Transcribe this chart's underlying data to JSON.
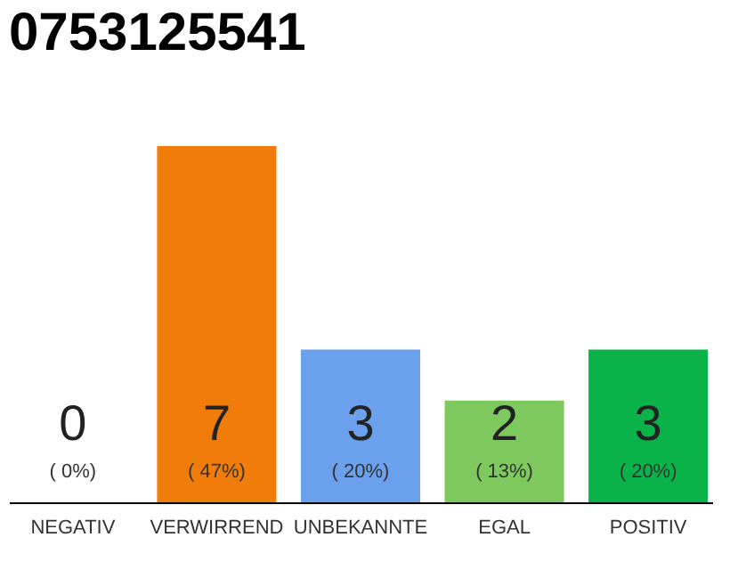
{
  "chart_data": {
    "type": "bar",
    "title": "0753125541",
    "categories": [
      "NEGATIV",
      "VERWIRREND",
      "UNBEKANNTE",
      "EGAL",
      "POSITIV"
    ],
    "values": [
      0,
      7,
      3,
      2,
      3
    ],
    "colors": [
      "#c8c8c8",
      "#f07d0a",
      "#6aa0ec",
      "#7dc95e",
      "#0ab34a"
    ],
    "value_labels": [
      "0",
      "7",
      "3",
      "2",
      "3"
    ],
    "annotations": [
      "( 0%)",
      "( 47%)",
      "( 20%)",
      "( 13%)",
      "( 20%)"
    ],
    "grid": false
  }
}
